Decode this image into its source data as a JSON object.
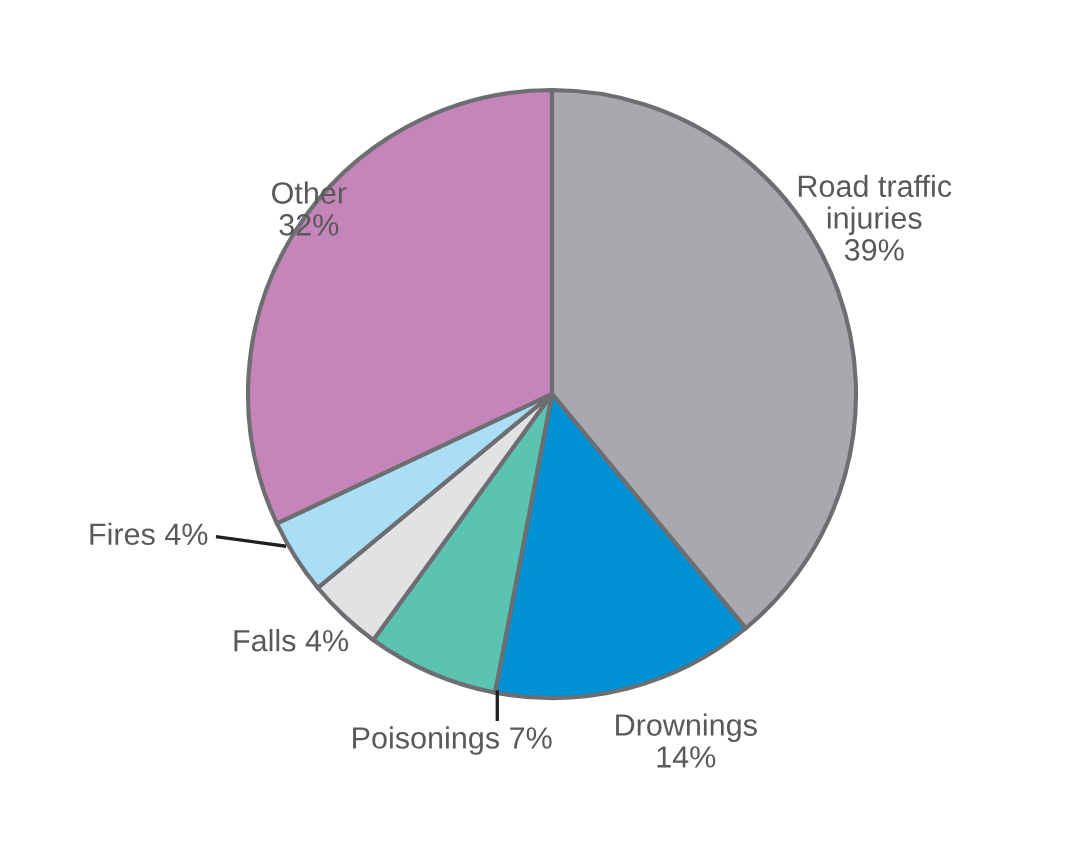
{
  "chart_data": {
    "type": "pie",
    "categories": [
      "Road traffic injuries",
      "Drownings",
      "Poisonings",
      "Falls",
      "Fires",
      "Other"
    ],
    "values": [
      39,
      14,
      7,
      4,
      4,
      32
    ],
    "value_labels": [
      "39%",
      "14%",
      "7%",
      "4%",
      "4%",
      "32%"
    ],
    "colors": [
      "#a7a9ac",
      "#0091d5",
      "#5bc4b1",
      "#e1e2e3",
      "#a9def4",
      "#c685b9"
    ]
  }
}
